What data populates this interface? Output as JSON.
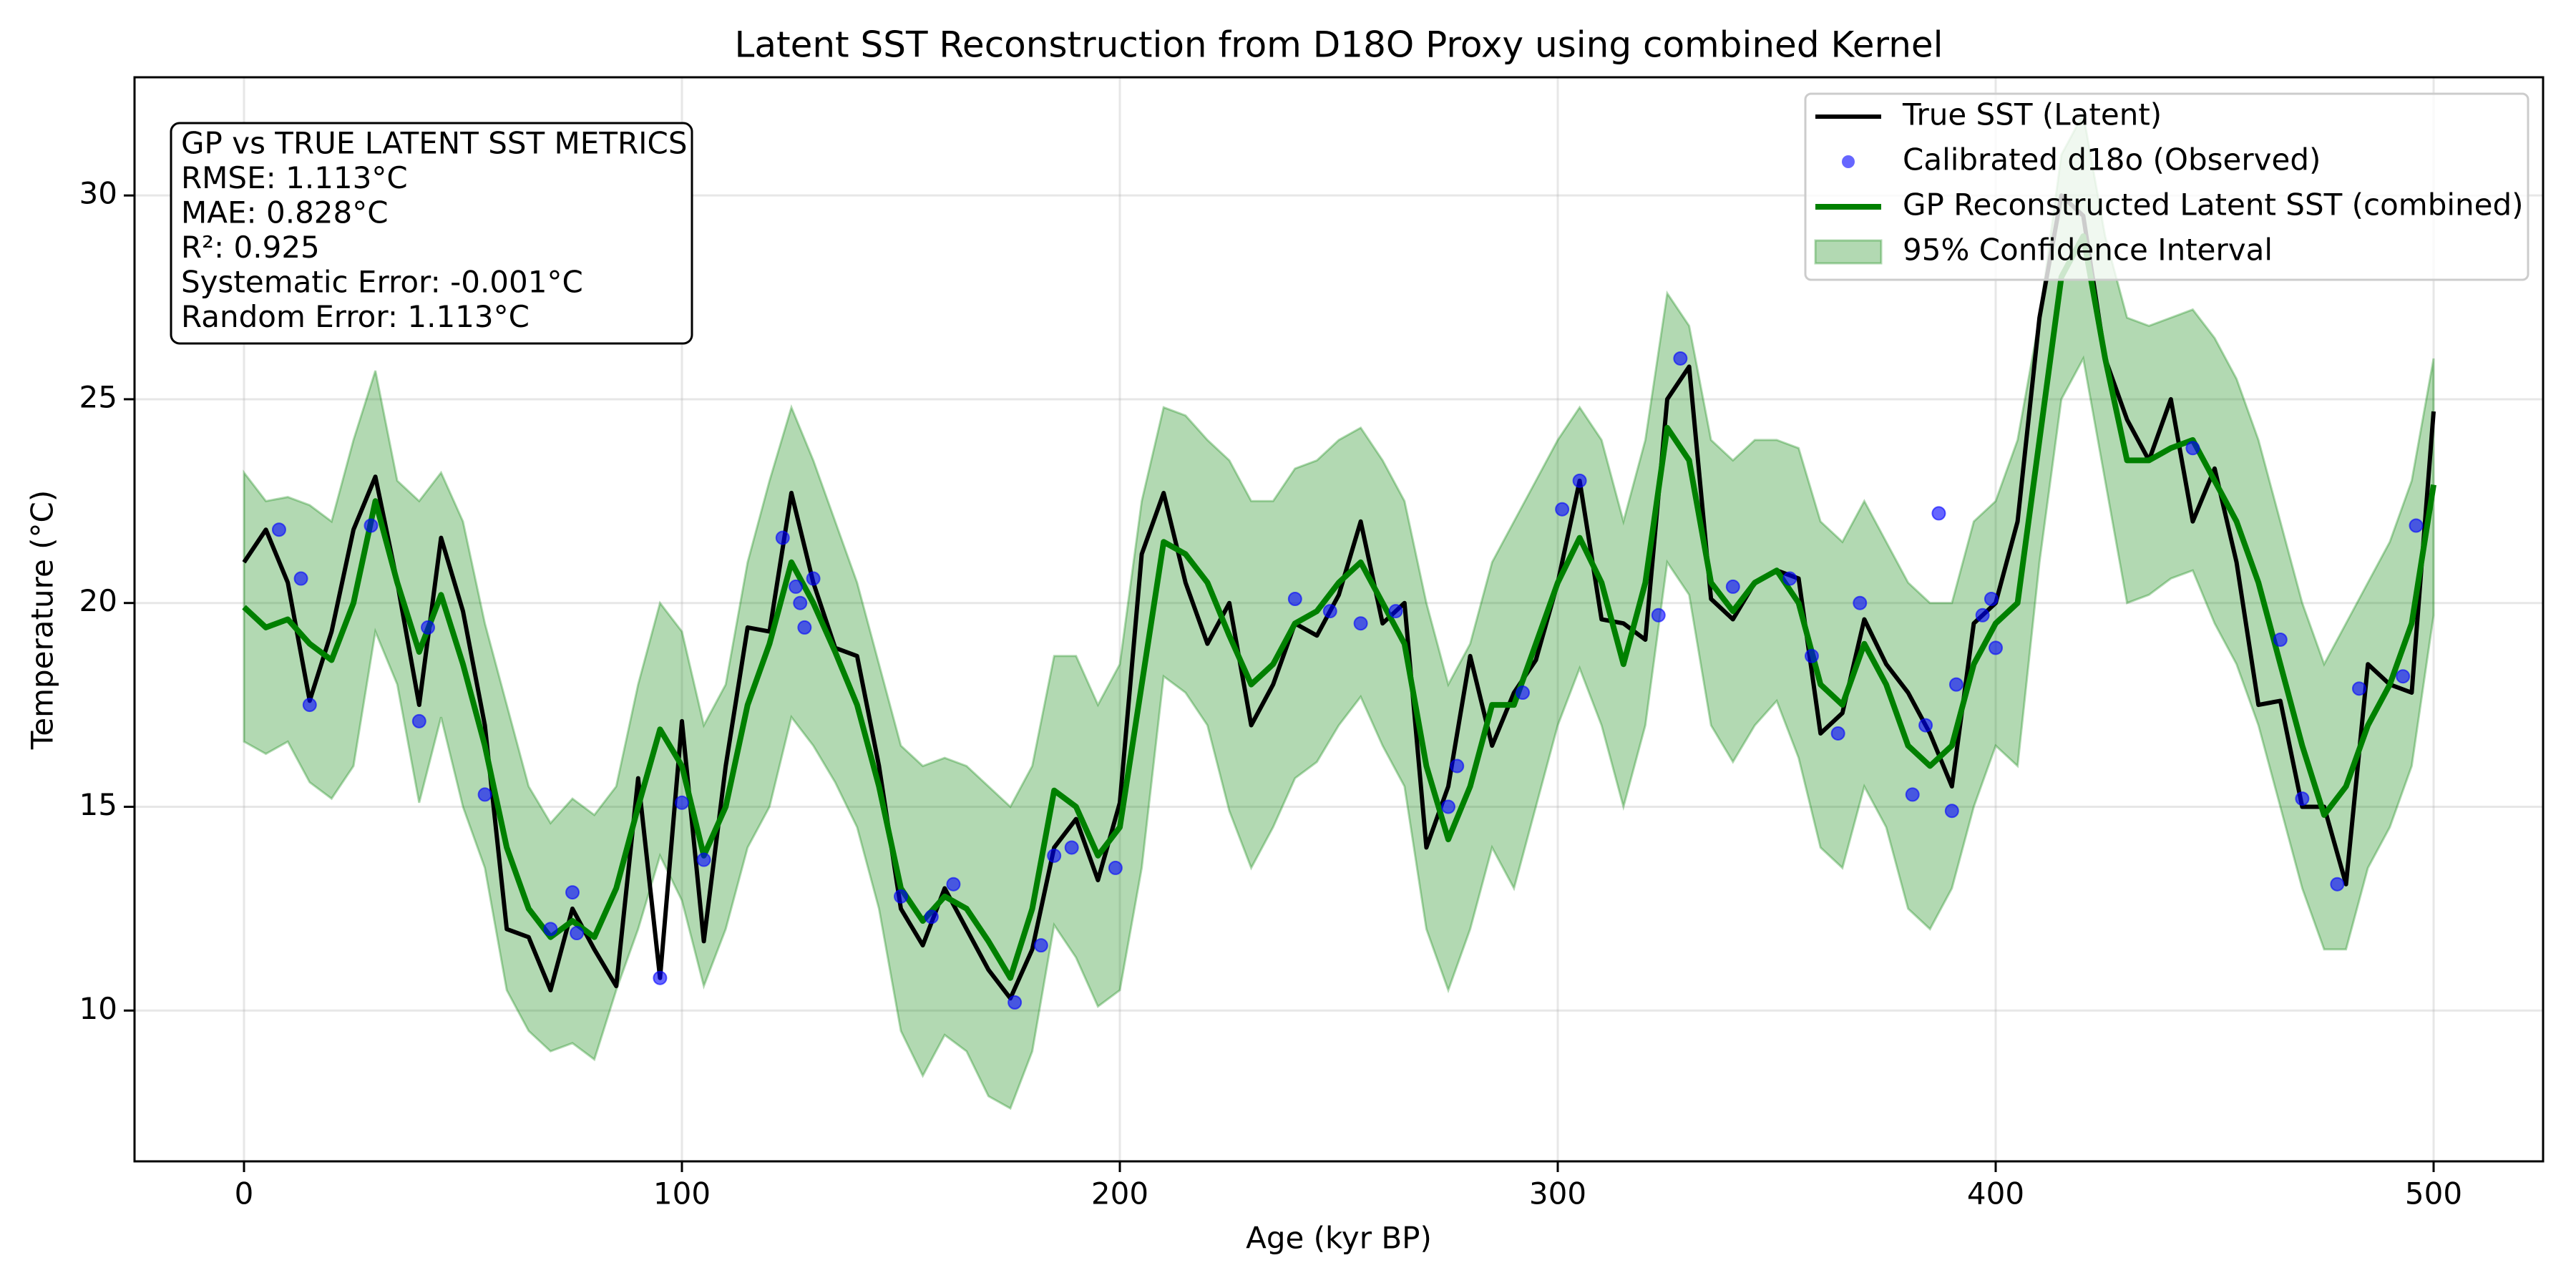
{
  "chart_data": {
    "type": "line",
    "title": "Latent SST Reconstruction from D18O Proxy using combined Kernel",
    "xlabel": "Age (kyr BP)",
    "ylabel": "Temperature (°C)",
    "xlim": [
      -25,
      525
    ],
    "ylim": [
      6.3,
      32.9
    ],
    "xticks": [
      0,
      100,
      200,
      300,
      400,
      500
    ],
    "yticks": [
      10,
      15,
      20,
      25,
      30
    ],
    "grid": true,
    "legend": "upper right",
    "annotation_lines": [
      "GP vs TRUE LATENT SST METRICS",
      "RMSE: 1.113°C",
      "MAE: 0.828°C",
      "R²: 0.925",
      "Systematic Error: -0.001°C",
      "Random Error: 1.113°C"
    ],
    "x": [
      0,
      5,
      10,
      15,
      20,
      25,
      30,
      35,
      40,
      45,
      50,
      55,
      60,
      65,
      70,
      75,
      80,
      85,
      90,
      95,
      100,
      105,
      110,
      115,
      120,
      125,
      130,
      135,
      140,
      145,
      150,
      155,
      160,
      165,
      170,
      175,
      180,
      185,
      190,
      195,
      200,
      205,
      210,
      215,
      220,
      225,
      230,
      235,
      240,
      245,
      250,
      255,
      260,
      265,
      270,
      275,
      280,
      285,
      290,
      295,
      300,
      305,
      310,
      315,
      320,
      325,
      330,
      335,
      340,
      345,
      350,
      355,
      360,
      365,
      370,
      375,
      380,
      385,
      390,
      395,
      400,
      405,
      410,
      415,
      420,
      425,
      430,
      435,
      440,
      445,
      450,
      455,
      460,
      465,
      470,
      475,
      480,
      485,
      490,
      495,
      500
    ],
    "series": [
      {
        "name": "True SST (Latent)",
        "style": "line",
        "color": "#000000",
        "values": [
          21.0,
          21.8,
          20.5,
          17.6,
          19.3,
          21.8,
          23.1,
          20.5,
          17.5,
          21.6,
          19.8,
          17.0,
          12.0,
          11.8,
          10.5,
          12.5,
          11.5,
          10.6,
          15.7,
          10.8,
          17.1,
          11.7,
          16.0,
          19.4,
          19.3,
          22.7,
          20.5,
          18.9,
          18.7,
          16.0,
          12.5,
          11.6,
          13.0,
          12.0,
          11.0,
          10.3,
          11.5,
          14.0,
          14.7,
          13.2,
          15.1,
          21.2,
          22.7,
          20.5,
          19.0,
          20.0,
          17.0,
          18.0,
          19.5,
          19.2,
          20.2,
          22.0,
          19.5,
          20.0,
          14.0,
          15.5,
          18.7,
          16.5,
          17.8,
          18.6,
          20.5,
          23.0,
          19.6,
          19.5,
          19.1,
          25.0,
          25.8,
          20.1,
          19.6,
          20.5,
          20.8,
          20.6,
          16.8,
          17.3,
          19.6,
          18.5,
          17.8,
          16.8,
          15.5,
          19.5,
          20.0,
          22.0,
          27.0,
          30.0,
          29.5,
          26.0,
          24.5,
          23.5,
          25.0,
          22.0,
          23.3,
          21.0,
          17.5,
          17.6,
          15.0,
          15.0,
          13.1,
          18.5,
          18.0,
          17.8,
          24.7
        ]
      },
      {
        "name": "Calibrated d18o (Observed)",
        "style": "scatter",
        "color": "#0000ff",
        "x": [
          8,
          13,
          15,
          29,
          40,
          42,
          55,
          70,
          75,
          76,
          95,
          100,
          105,
          123,
          126,
          127,
          128,
          130,
          150,
          157,
          162,
          176,
          182,
          185,
          189,
          199,
          240,
          248,
          255,
          263,
          275,
          277,
          292,
          301,
          305,
          323,
          328,
          340,
          353,
          358,
          364,
          369,
          381,
          384,
          387,
          390,
          391,
          397,
          399,
          400,
          445,
          465,
          470,
          478,
          483,
          493,
          496
        ],
        "values": [
          21.8,
          20.6,
          17.5,
          21.9,
          17.1,
          19.4,
          15.3,
          12.0,
          12.9,
          11.9,
          10.8,
          15.1,
          13.7,
          21.6,
          20.4,
          20.0,
          19.4,
          20.6,
          12.8,
          12.3,
          13.1,
          10.2,
          11.6,
          13.8,
          14.0,
          13.5,
          20.1,
          19.8,
          19.5,
          19.8,
          15.0,
          16.0,
          17.8,
          22.3,
          23.0,
          19.7,
          26.0,
          20.4,
          20.6,
          18.7,
          16.8,
          20.0,
          15.3,
          17.0,
          22.2,
          14.9,
          18.0,
          19.7,
          20.1,
          18.9,
          23.8,
          19.1,
          15.2,
          13.1,
          17.9,
          18.2,
          21.9
        ]
      },
      {
        "name": "GP Reconstructed Latent SST (combined)",
        "style": "line",
        "color": "#008000",
        "values": [
          19.9,
          19.4,
          19.6,
          19.0,
          18.6,
          20.0,
          22.5,
          20.5,
          18.8,
          20.2,
          18.5,
          16.5,
          14.0,
          12.5,
          11.8,
          12.2,
          11.8,
          13.0,
          15.0,
          16.9,
          16.0,
          13.8,
          15.0,
          17.5,
          19.0,
          21.0,
          20.0,
          18.8,
          17.5,
          15.5,
          13.0,
          12.2,
          12.8,
          12.5,
          11.7,
          10.8,
          12.5,
          15.4,
          15.0,
          13.8,
          14.5,
          18.0,
          21.5,
          21.2,
          20.5,
          19.2,
          18.0,
          18.5,
          19.5,
          19.8,
          20.5,
          21.0,
          20.0,
          19.0,
          16.0,
          14.2,
          15.5,
          17.5,
          17.5,
          19.0,
          20.5,
          21.6,
          20.5,
          18.5,
          20.5,
          24.3,
          23.5,
          20.5,
          19.8,
          20.5,
          20.8,
          20.0,
          18.0,
          17.5,
          19.0,
          18.0,
          16.5,
          16.0,
          16.5,
          18.5,
          19.5,
          20.0,
          24.0,
          28.0,
          29.0,
          26.0,
          23.5,
          23.5,
          23.8,
          24.0,
          23.0,
          22.0,
          20.5,
          18.5,
          16.5,
          14.8,
          15.5,
          17.0,
          18.0,
          19.5,
          22.9
        ]
      },
      {
        "name": "95% Confidence Interval",
        "style": "band",
        "color": "#008000",
        "lower": [
          16.6,
          16.3,
          16.6,
          15.6,
          15.2,
          16.0,
          19.3,
          18.0,
          15.1,
          17.2,
          15.0,
          13.5,
          10.5,
          9.5,
          9.0,
          9.2,
          8.8,
          10.5,
          12.0,
          13.8,
          12.7,
          10.6,
          12.0,
          14.0,
          15.0,
          17.2,
          16.5,
          15.6,
          14.5,
          12.5,
          9.5,
          8.4,
          9.4,
          9.0,
          7.9,
          7.6,
          9.0,
          12.1,
          11.3,
          10.1,
          10.5,
          13.5,
          18.2,
          17.8,
          17.0,
          14.9,
          13.5,
          14.5,
          15.7,
          16.1,
          17.0,
          17.7,
          16.5,
          15.5,
          12.0,
          10.5,
          12.0,
          14.0,
          13.0,
          15.0,
          17.0,
          18.4,
          17.0,
          15.0,
          17.0,
          21.0,
          20.2,
          17.0,
          16.1,
          17.0,
          17.6,
          16.2,
          14.0,
          13.5,
          15.5,
          14.5,
          12.5,
          12.0,
          13.0,
          15.0,
          16.5,
          16.0,
          21.0,
          25.0,
          26.0,
          23.0,
          20.0,
          20.2,
          20.6,
          20.8,
          19.5,
          18.5,
          17.0,
          15.0,
          13.0,
          11.5,
          11.5,
          13.5,
          14.5,
          16.0,
          19.7
        ],
        "upper": [
          23.2,
          22.5,
          22.6,
          22.4,
          22.0,
          24.0,
          25.7,
          23.0,
          22.5,
          23.2,
          22.0,
          19.5,
          17.5,
          15.5,
          14.6,
          15.2,
          14.8,
          15.5,
          18.0,
          20.0,
          19.3,
          17.0,
          18.0,
          21.0,
          23.0,
          24.8,
          23.5,
          22.0,
          20.5,
          18.5,
          16.5,
          16.0,
          16.2,
          16.0,
          15.5,
          15.0,
          16.0,
          18.7,
          18.7,
          17.5,
          18.5,
          22.5,
          24.8,
          24.6,
          24.0,
          23.5,
          22.5,
          22.5,
          23.3,
          23.5,
          24.0,
          24.3,
          23.5,
          22.5,
          20.0,
          18.0,
          19.0,
          21.0,
          22.0,
          23.0,
          24.0,
          24.8,
          24.0,
          22.0,
          24.0,
          27.6,
          26.8,
          24.0,
          23.5,
          24.0,
          24.0,
          23.8,
          22.0,
          21.5,
          22.5,
          21.5,
          20.5,
          20.0,
          20.0,
          22.0,
          22.5,
          24.0,
          27.0,
          31.0,
          32.0,
          29.0,
          27.0,
          26.8,
          27.0,
          27.2,
          26.5,
          25.5,
          24.0,
          22.0,
          20.0,
          18.5,
          19.5,
          20.5,
          21.5,
          23.0,
          26.0
        ]
      }
    ]
  }
}
